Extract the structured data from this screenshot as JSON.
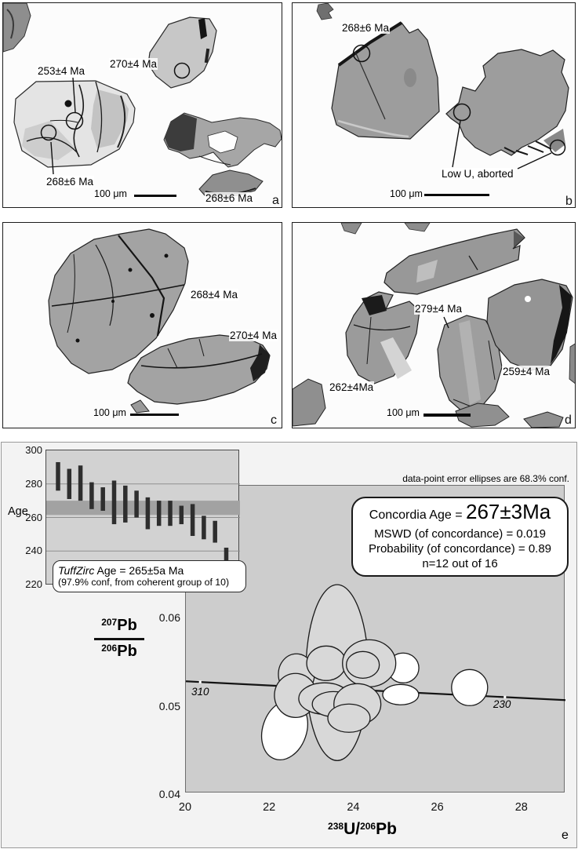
{
  "figure": {
    "panels": [
      {
        "letter": "a",
        "scale_label": "100 μm",
        "age_labels": [
          {
            "text": "253±4 Ma"
          },
          {
            "text": "270±4 Ma"
          },
          {
            "text": "268±6 Ma"
          },
          {
            "text": "268±6 Ma"
          }
        ]
      },
      {
        "letter": "b",
        "scale_label": "100 μm",
        "age_labels": [
          {
            "text": "268±6 Ma"
          }
        ],
        "note": "Low U, aborted"
      },
      {
        "letter": "c",
        "scale_label": "100 μm",
        "age_labels": [
          {
            "text": "268±4 Ma"
          },
          {
            "text": "270±4 Ma"
          }
        ]
      },
      {
        "letter": "d",
        "scale_label": "100 μm",
        "age_labels": [
          {
            "text": "279±4 Ma"
          },
          {
            "text": "262±4Ma"
          },
          {
            "text": "259±4 Ma"
          }
        ]
      }
    ],
    "panel_e": {
      "letter": "e",
      "annotation": "data-point error ellipses are 68.3% conf.",
      "stats_box": {
        "age_prefix": "Concordia Age = ",
        "age_value": "267±3Ma",
        "mswd_line": "MSWD (of concordance) = 0.019",
        "prob_line": "Probability (of concordance) = 0.89",
        "n_line": "n=12 out of 16"
      },
      "x_axis": {
        "sup1": "238",
        "base1": "U/",
        "sup2": "206",
        "base2": "Pb"
      },
      "y_axis": {
        "num_sup": "207",
        "num_base": "Pb",
        "den_sup": "206",
        "den_base": "Pb"
      },
      "inset": {
        "ylabel": "Age",
        "tuffzirc_name": "TuffZirc",
        "tuffzirc_result": " Age = 265±5a Ma",
        "tuffzirc_conf": "(97.9% conf, from coherent group of 10)"
      }
    }
  },
  "chart_data": [
    {
      "type": "bar",
      "subtype": "tuffzirc-ranked-age-error-bars",
      "ylabel": "Age",
      "ylim": [
        220,
        300
      ],
      "yticks": [
        300,
        280,
        260,
        240,
        220
      ],
      "gridlines": [
        280,
        260,
        240
      ],
      "coherent_band": [
        261.5,
        270
      ],
      "bars": [
        [
          293,
          276
        ],
        [
          289,
          271
        ],
        [
          291,
          270
        ],
        [
          281,
          265
        ],
        [
          278,
          264
        ],
        [
          282,
          256
        ],
        [
          279,
          257
        ],
        [
          276,
          260
        ],
        [
          272,
          253
        ],
        [
          270,
          255
        ],
        [
          270,
          255
        ],
        [
          267,
          256
        ],
        [
          268,
          249
        ],
        [
          261,
          247
        ],
        [
          258,
          245
        ],
        [
          242,
          231
        ]
      ],
      "result_age": "265±5a Ma",
      "result_conf": "97.9% conf, from coherent group of 10"
    },
    {
      "type": "scatter",
      "subtype": "tera-wasserburg-concordia-error-ellipses",
      "xlabel": "238U/206Pb",
      "ylabel": "207Pb/206Pb",
      "xlim": [
        20,
        29.03
      ],
      "ylim": [
        0.0402,
        0.075
      ],
      "xticks": [
        20,
        22,
        24,
        26,
        28
      ],
      "yticks": [
        0.06,
        0.05,
        0.04
      ],
      "concordia_line": {
        "x1": 20,
        "y1": 0.05287,
        "x2": 29.03,
        "y2": 0.05074,
        "tick_ages": [
          {
            "label": "310",
            "x": 20.34
          },
          {
            "label": "230",
            "x": 27.59
          }
        ]
      },
      "age_labels": [
        {
          "text": "310",
          "x": 20.15,
          "y": 0.05225
        },
        {
          "text": "230",
          "x": 27.33,
          "y": 0.05083
        }
      ],
      "ellipses": [
        {
          "cx": 23.6,
          "cy": 0.05385,
          "rx": 0.746,
          "ry": 0.00995,
          "fill": "gray"
        },
        {
          "cx": 22.35,
          "cy": 0.04736,
          "rx": 0.522,
          "ry": 0.00346,
          "fill": "white",
          "rot": 19
        },
        {
          "cx": 25.17,
          "cy": 0.05438,
          "rx": 0.373,
          "ry": 0.00169,
          "fill": "white"
        },
        {
          "cx": 22.63,
          "cy": 0.05367,
          "rx": 0.429,
          "ry": 0.00231,
          "fill": "gray"
        },
        {
          "cx": 22.61,
          "cy": 0.05127,
          "rx": 0.503,
          "ry": 0.00249,
          "fill": "gray"
        },
        {
          "cx": 23.34,
          "cy": 0.05491,
          "rx": 0.466,
          "ry": 0.00195,
          "fill": "gray"
        },
        {
          "cx": 24.36,
          "cy": 0.05491,
          "rx": 0.634,
          "ry": 0.00266,
          "fill": "gray"
        },
        {
          "cx": 24.21,
          "cy": 0.05473,
          "rx": 0.392,
          "ry": 0.00151,
          "fill": "gray"
        },
        {
          "cx": 23.3,
          "cy": 0.05092,
          "rx": 0.615,
          "ry": 0.00178,
          "fill": "gray"
        },
        {
          "cx": 23.51,
          "cy": 0.05029,
          "rx": 0.503,
          "ry": 0.00142,
          "fill": "gray"
        },
        {
          "cx": 24.08,
          "cy": 0.05029,
          "rx": 0.559,
          "ry": 0.00231,
          "fill": "gray"
        },
        {
          "cx": 23.88,
          "cy": 0.0487,
          "rx": 0.503,
          "ry": 0.0016,
          "fill": "gray"
        },
        {
          "cx": 25.11,
          "cy": 0.05136,
          "rx": 0.429,
          "ry": 0.00115,
          "fill": "white"
        },
        {
          "cx": 26.75,
          "cy": 0.05216,
          "rx": 0.429,
          "ry": 0.00204,
          "fill": "white"
        }
      ],
      "stats": {
        "concordia_age_Ma": "267±3",
        "mswd_of_concordance": 0.019,
        "probability_of_concordance": 0.89,
        "n": "12 out of 16"
      }
    }
  ],
  "colors": {
    "plot_bg": "#cdcdcd",
    "ellipse_gray": "#d8d8d8",
    "ellipse_white": "#ffffff",
    "band_gray": "#a2a2a2",
    "bar_dark": "#2e2e2e",
    "panel_e_bg": "#f3f3f3",
    "line_black": "#141414"
  }
}
